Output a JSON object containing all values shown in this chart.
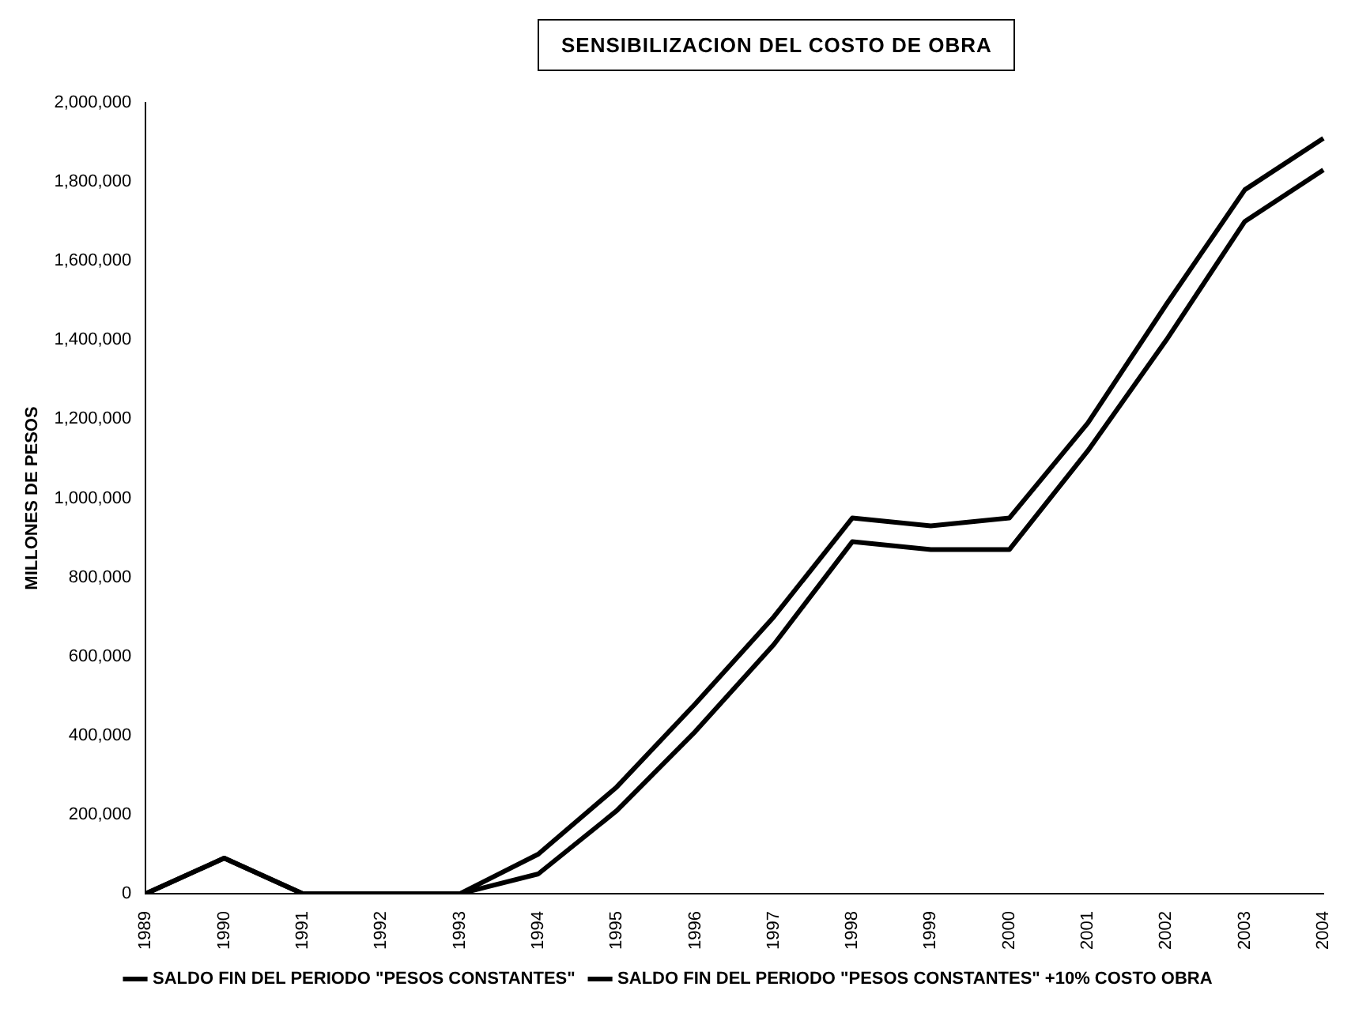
{
  "chart_data": {
    "type": "line",
    "title": "SENSIBILIZACION DEL COSTO DE OBRA",
    "ylabel": "MILLONES DE PESOS",
    "categories": [
      "1989",
      "1990",
      "1991",
      "1992",
      "1993",
      "1994",
      "1995",
      "1996",
      "1997",
      "1998",
      "1999",
      "2000",
      "2001",
      "2002",
      "2003",
      "2004"
    ],
    "series": [
      {
        "name": "SALDO FIN DEL PERIODO \"PESOS CONSTANTES\"",
        "color": "#000000",
        "values": [
          0,
          90000,
          0,
          0,
          0,
          100000,
          270000,
          480000,
          700000,
          950000,
          930000,
          950000,
          1190000,
          1490000,
          1780000,
          1910000
        ]
      },
      {
        "name": "SALDO FIN DEL PERIODO \"PESOS CONSTANTES\" +10% COSTO OBRA",
        "color": "#000000",
        "values": [
          0,
          90000,
          0,
          0,
          0,
          50000,
          210000,
          410000,
          630000,
          890000,
          870000,
          870000,
          1120000,
          1400000,
          1700000,
          1830000
        ]
      }
    ],
    "ylim": [
      0,
      2000000
    ],
    "yticks": [
      0,
      {
        "value": 200000,
        "label": "200,000"
      },
      {
        "value": 400000,
        "label": "400,000"
      },
      {
        "value": 600000,
        "label": "600,000"
      },
      {
        "value": 800000,
        "label": "800,000"
      },
      {
        "value": 1000000,
        "label": "1,000,000"
      },
      {
        "value": 1200000,
        "label": "1,200,000"
      },
      {
        "value": 1400000,
        "label": "1,400,000"
      },
      {
        "value": 1600000,
        "label": "1,600,000"
      },
      {
        "value": 1800000,
        "label": "1,800,000"
      },
      {
        "value": 2000000,
        "label": "2,000,000"
      }
    ],
    "grid": false,
    "legend": "bottom",
    "marker": "none",
    "line_style": "solid"
  }
}
